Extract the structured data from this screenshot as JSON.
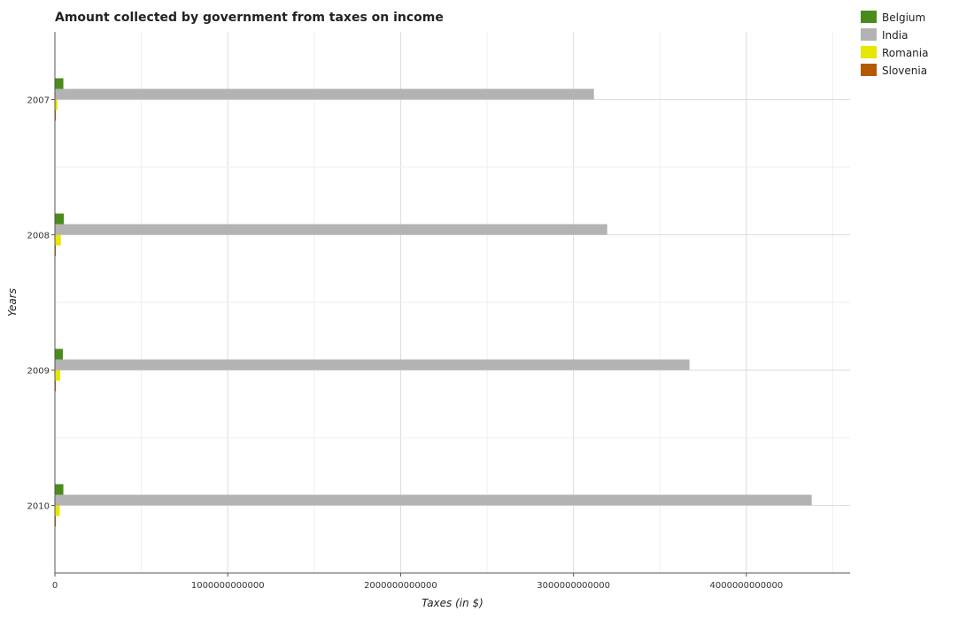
{
  "chart_data": {
    "type": "bar",
    "orientation": "horizontal",
    "title": "Amount collected by government from taxes on income",
    "xlabel": "Taxes (in $)",
    "ylabel": "Years",
    "categories": [
      "2007",
      "2008",
      "2009",
      "2010"
    ],
    "xlim": [
      0,
      4600000000000
    ],
    "xticks": [
      0,
      1000000000000,
      2000000000000,
      3000000000000,
      4000000000000
    ],
    "xtick_labels": [
      "0",
      "1000000000000",
      "2000000000000",
      "3000000000000",
      "4000000000000"
    ],
    "grid": true,
    "legend_position": "top-right",
    "series": [
      {
        "name": "Belgium",
        "color": "#4a8c1c",
        "values": [
          49000000000,
          52000000000,
          46000000000,
          49000000000
        ]
      },
      {
        "name": "India",
        "color": "#b3b3b3",
        "values": [
          3118000000000,
          3195000000000,
          3671000000000,
          4378000000000
        ]
      },
      {
        "name": "Romania",
        "color": "#e6e600",
        "values": [
          15000000000,
          34000000000,
          31000000000,
          28000000000
        ]
      },
      {
        "name": "Slovenia",
        "color": "#b35900",
        "values": [
          2000000000,
          2500000000,
          2000000000,
          1500000000
        ]
      }
    ]
  }
}
